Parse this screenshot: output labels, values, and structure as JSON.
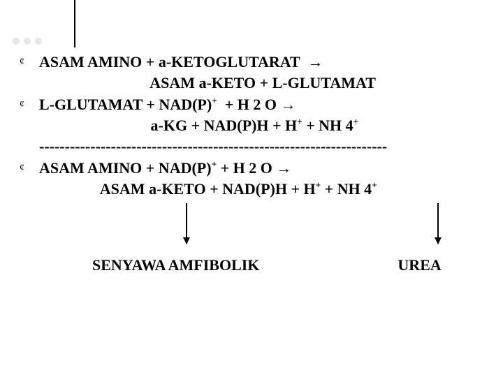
{
  "colors": {
    "background": "#ffffff",
    "text": "#000000",
    "decor_dot": "#e6e6e6",
    "line": "#000000"
  },
  "typography": {
    "family": "Times New Roman",
    "size_pt": 22,
    "weight": "bold"
  },
  "bullets": {
    "glyph": "¢"
  },
  "lines": {
    "l1a": "ASAM AMINO + ",
    "alpha": "a",
    "l1b": "-KETOGLUTARAT  ",
    "arrow": "→",
    "l2a": "                             ASAM ",
    "l2b": "-KETO + L-GLUTAMAT",
    "l3a": "L-GLUTAMAT + NAD(P)",
    "plus": "+",
    "l3b": "  + H 2 O ",
    "l4a": "                             ",
    "l4b": "-KG + NAD(P)H + H",
    "l4c": " + NH 4",
    "divider": "--------------------------------------------------------------------",
    "l5a": "ASAM AMINO + NAD(P)",
    "l5b": " + H 2 O ",
    "l6a": "                ASAM ",
    "l6b": "-KETO + NAD(P)H + H",
    "l6c": " + NH 4"
  },
  "bottom": {
    "left": "SENYAWA  AMFIBOLIK",
    "right": "UREA"
  }
}
